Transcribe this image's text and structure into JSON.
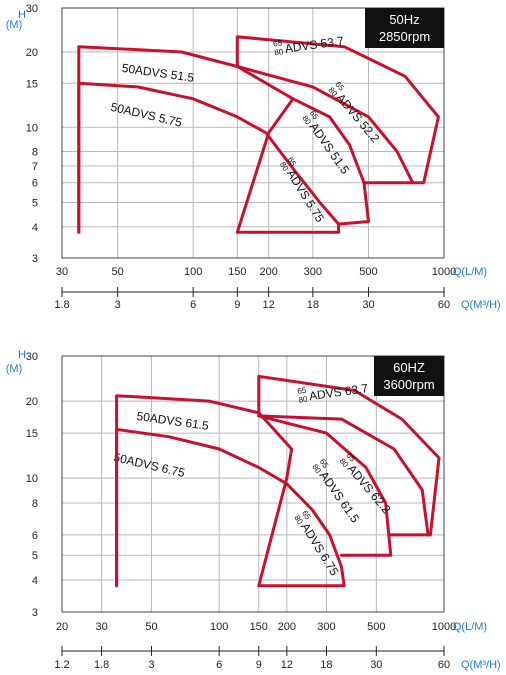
{
  "colors": {
    "curve": "#c8102e",
    "unit_label": "#1a7fc1",
    "grid": "#b8b8b8",
    "box": "#111111"
  },
  "chart_data": [
    {
      "type": "line",
      "xscale": "log",
      "yscale": "log",
      "ylabel_line1": "H",
      "ylabel_line2": "(M)",
      "xlabel": "Q(L/M)",
      "x2label": "Q(M³/H)",
      "box_line1": "50Hz",
      "box_line2": "2850rpm",
      "yticks": [
        3,
        4,
        5,
        6,
        7,
        8,
        10,
        15,
        20,
        30
      ],
      "xticks": [
        30,
        50,
        100,
        150,
        200,
        300,
        500,
        1000
      ],
      "x2ticks": [
        1.8,
        3,
        6,
        9,
        12,
        18,
        30,
        60
      ],
      "xlim": [
        30,
        1000
      ],
      "ylim": [
        3,
        30
      ],
      "series": [
        {
          "name": "50ADVS 5.75",
          "prefix": "",
          "label_at": [
            47,
            12.1
          ],
          "label_angle": 13,
          "points": [
            [
              35,
              3.8
            ],
            [
              35,
              15
            ],
            [
              60,
              14.5
            ],
            [
              100,
              13
            ],
            [
              150,
              11
            ],
            [
              195,
              9.5
            ],
            [
              260,
              6.5
            ],
            [
              320,
              5
            ],
            [
              380,
              4.1
            ],
            [
              380,
              3.8
            ],
            [
              150,
              3.8
            ],
            [
              200,
              9.5
            ]
          ]
        },
        {
          "name": "50ADVS 51.5",
          "prefix": "",
          "label_at": [
            52,
            17.3
          ],
          "label_angle": 8,
          "points": [
            [
              35,
              3.8
            ],
            [
              35,
              21
            ],
            [
              90,
              20
            ],
            [
              150,
              17.5
            ],
            [
              250,
              13
            ],
            [
              200,
              9.5
            ]
          ]
        },
        {
          "name": "ADVS 5.75",
          "prefix": "65 80",
          "label_at": [
            230,
            7.3
          ],
          "label_angle": 58,
          "points": []
        },
        {
          "name": "ADVS 51.5",
          "prefix": "65 80",
          "label_at": [
            282,
            11.2
          ],
          "label_angle": 55,
          "points": [
            [
              250,
              13
            ],
            [
              350,
              11
            ],
            [
              420,
              8.5
            ],
            [
              480,
              6
            ],
            [
              500,
              4.2
            ],
            [
              380,
              4.1
            ]
          ]
        },
        {
          "name": "ADVS 52.2",
          "prefix": "65 80",
          "label_at": [
            357,
            14.5
          ],
          "label_angle": 50,
          "points": [
            [
              150,
              17.5
            ],
            [
              300,
              14.5
            ],
            [
              500,
              11
            ],
            [
              650,
              8
            ],
            [
              750,
              6
            ],
            [
              480,
              6
            ]
          ]
        },
        {
          "name": "ADVS 53.7",
          "prefix": "65 80",
          "label_at": [
            210,
            20.3
          ],
          "label_angle": -8,
          "points": [
            [
              150,
              17.5
            ],
            [
              150,
              23
            ],
            [
              400,
              21
            ],
            [
              700,
              16
            ],
            [
              950,
              11
            ],
            [
              830,
              6
            ],
            [
              750,
              6
            ]
          ]
        }
      ]
    },
    {
      "type": "line",
      "xscale": "log",
      "yscale": "log",
      "ylabel_line1": "H",
      "ylabel_line2": "(M)",
      "xlabel": "Q(L/M)",
      "x2label": "Q(M³/H)",
      "box_line1": "60HZ",
      "box_line2": "3600rpm",
      "yticks": [
        3,
        4,
        5,
        6,
        8,
        10,
        15,
        20,
        30
      ],
      "xticks": [
        20,
        30,
        50,
        100,
        150,
        200,
        300,
        500,
        1000
      ],
      "x2ticks": [
        1.2,
        1.8,
        3,
        6,
        9,
        12,
        18,
        30,
        60
      ],
      "xlim": [
        20,
        1000
      ],
      "ylim": [
        3,
        30
      ],
      "series": [
        {
          "name": "50ADVS 6.75",
          "prefix": "",
          "label_at": [
            34,
            12.1
          ],
          "label_angle": 13,
          "points": [
            [
              35,
              3.8
            ],
            [
              35,
              15.5
            ],
            [
              60,
              14.5
            ],
            [
              100,
              13
            ],
            [
              150,
              11
            ],
            [
              200,
              9.5
            ],
            [
              260,
              7.5
            ],
            [
              310,
              6
            ],
            [
              350,
              4.5
            ],
            [
              360,
              3.8
            ],
            [
              150,
              3.8
            ],
            [
              200,
              10
            ]
          ]
        },
        {
          "name": "50ADVS 61.5",
          "prefix": "",
          "label_at": [
            43,
            17.5
          ],
          "label_angle": 8,
          "points": [
            [
              35,
              3.8
            ],
            [
              35,
              21
            ],
            [
              90,
              20
            ],
            [
              150,
              18
            ],
            [
              210,
              13
            ],
            [
              200,
              10
            ]
          ]
        },
        {
          "name": "ADVS 6.75",
          "prefix": "65 80",
          "label_at": [
            225,
            7.2
          ],
          "label_angle": 58,
          "points": []
        },
        {
          "name": "ADVS 61.5",
          "prefix": "65 80",
          "label_at": [
            270,
            11.4
          ],
          "label_angle": 55,
          "points": [
            [
              150,
              17.5
            ],
            [
              300,
              15
            ],
            [
              450,
              11
            ],
            [
              550,
              8
            ],
            [
              580,
              5
            ],
            [
              350,
              5
            ]
          ]
        },
        {
          "name": "ADVS 62.2",
          "prefix": "65 80",
          "label_at": [
            355,
            12
          ],
          "label_angle": 50,
          "points": [
            [
              150,
              17.5
            ],
            [
              350,
              17
            ],
            [
              600,
              13
            ],
            [
              800,
              9
            ],
            [
              850,
              6
            ],
            [
              580,
              6
            ]
          ]
        },
        {
          "name": "ADVS 63.7",
          "prefix": "65 80",
          "label_at": [
            225,
            20.6
          ],
          "label_angle": -8,
          "points": [
            [
              150,
              17.5
            ],
            [
              150,
              25
            ],
            [
              400,
              22
            ],
            [
              650,
              17
            ],
            [
              950,
              12
            ],
            [
              870,
              6
            ],
            [
              850,
              6
            ]
          ]
        }
      ]
    }
  ]
}
